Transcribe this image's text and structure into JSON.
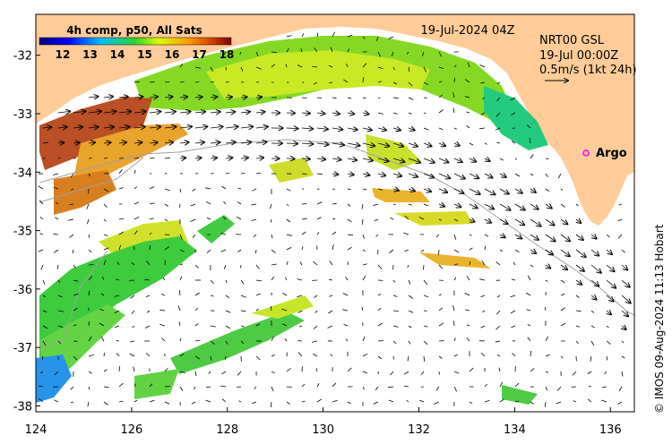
{
  "map": {
    "colorbar_title": "4h comp, p50, All Sats",
    "colorbar_ticks": [
      "12",
      "13",
      "14",
      "15",
      "16",
      "17",
      "18"
    ],
    "date_label": "19-Jul-2024 04Z",
    "product_label": "NRT00 GSL",
    "time_label": "19-Jul 00:00Z",
    "scale_label": "0.5m/s (1kt 24h)",
    "argo_label": "Argo",
    "credit": "© IMOS 09-Aug-2024 11:13 Hobart",
    "x_ticks": [
      "124",
      "126",
      "128",
      "130",
      "132",
      "134",
      "136"
    ],
    "y_ticks": [
      "-32",
      "-33",
      "-34",
      "-35",
      "-36",
      "-37",
      "-38"
    ],
    "lon_range": [
      124,
      136.5
    ],
    "lat_range": [
      -38.1,
      -31.3
    ],
    "colors": {
      "land": "#ffcc99",
      "sea": "#ffffff",
      "argo": "#ff00ff"
    }
  }
}
